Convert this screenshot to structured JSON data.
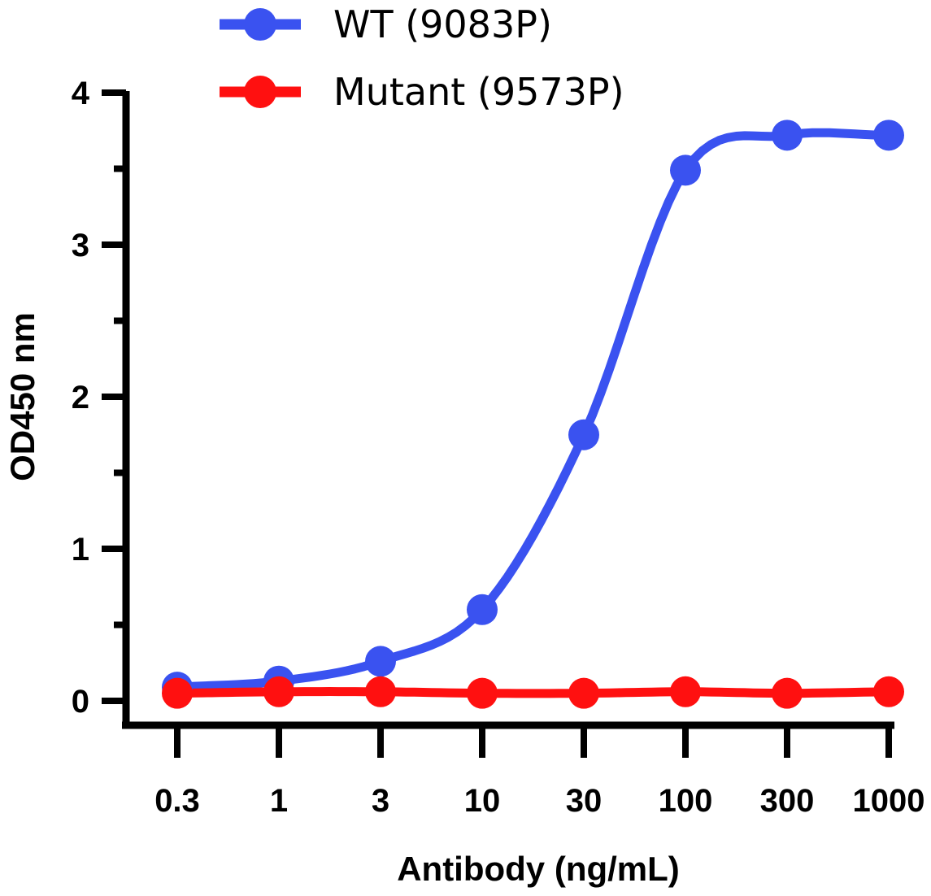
{
  "chart_data": {
    "type": "line",
    "xscale": "log",
    "x": [
      0.3,
      1,
      3,
      10,
      30,
      100,
      300,
      1000
    ],
    "x_tick_labels": [
      "0.3",
      "1",
      "3",
      "10",
      "30",
      "100",
      "300",
      "1000"
    ],
    "ylim": [
      0,
      4
    ],
    "y_ticks": [
      0,
      1,
      2,
      3,
      4
    ],
    "y_tick_labels": [
      "0",
      "1",
      "2",
      "3",
      "4"
    ],
    "xlabel": "Antibody (ng/mL)",
    "ylabel": "OD450 nm",
    "legend_position": "top-center",
    "series": [
      {
        "name": "WT (9083P)",
        "color": "#3a52f0",
        "values": [
          0.09,
          0.13,
          0.26,
          0.6,
          1.75,
          3.49,
          3.72,
          3.72
        ]
      },
      {
        "name": "Mutant (9573P)",
        "color": "#ff1010",
        "values": [
          0.05,
          0.06,
          0.06,
          0.05,
          0.05,
          0.06,
          0.05,
          0.06
        ]
      }
    ]
  }
}
